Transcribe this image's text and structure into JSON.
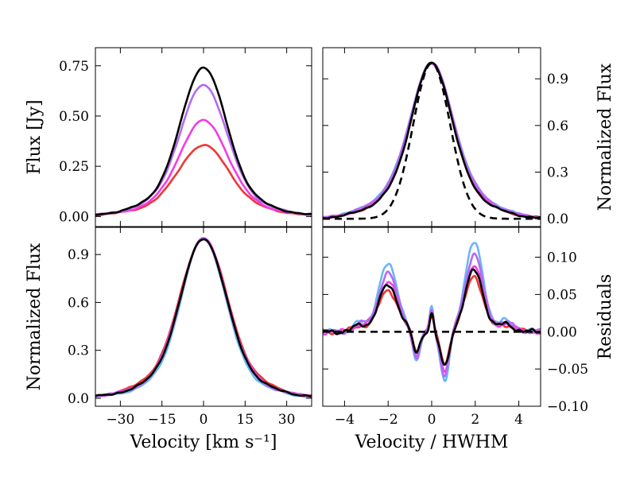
{
  "colors": {
    "black": "#000000",
    "violet": "#b36bf2",
    "magenta": "#f23ce6",
    "red": "#ee3636",
    "lightblue": "#6cb6f5"
  },
  "chart_data": [
    {
      "id": "top-left",
      "type": "line",
      "title": "",
      "xlabel": "",
      "ylabel": "Flux [Jy]",
      "ylabel_side": "left",
      "xlim": [
        -39,
        39
      ],
      "ylim": [
        -0.05,
        0.84
      ],
      "xticks": [
        -30,
        -15,
        0,
        15,
        30
      ],
      "xtick_labels": [],
      "yticks": [
        0.0,
        0.25,
        0.5,
        0.75
      ],
      "ytick_labels": [
        "0.00",
        "0.25",
        "0.50",
        "0.75"
      ],
      "series": [
        {
          "name": "red",
          "color": "red",
          "style": "gauss",
          "amp": 0.355,
          "sigma": 8.6,
          "wing": 0.22
        },
        {
          "name": "magenta",
          "color": "magenta",
          "style": "gauss",
          "amp": 0.478,
          "sigma": 8.3,
          "wing": 0.2
        },
        {
          "name": "violet",
          "color": "violet",
          "style": "gauss",
          "amp": 0.655,
          "sigma": 8.0,
          "wing": 0.2
        },
        {
          "name": "black",
          "color": "black",
          "style": "gauss",
          "amp": 0.742,
          "sigma": 7.8,
          "wing": 0.2
        }
      ]
    },
    {
      "id": "top-right",
      "type": "line",
      "title": "",
      "xlabel": "",
      "ylabel": "Normalized Flux",
      "ylabel_side": "right",
      "xlim": [
        -5,
        5
      ],
      "ylim": [
        -0.05,
        1.1
      ],
      "xticks": [
        -4,
        -2,
        0,
        2,
        4
      ],
      "xtick_labels": [],
      "yticks": [
        0.0,
        0.3,
        0.6,
        0.9
      ],
      "ytick_labels": [
        "0.0",
        "0.3",
        "0.6",
        "0.9"
      ],
      "series": [
        {
          "name": "lightblue",
          "color": "lightblue",
          "style": "norm",
          "amp": 1.0,
          "sigma": 0.9,
          "wing": 0.3
        },
        {
          "name": "red",
          "color": "red",
          "style": "norm",
          "amp": 1.0,
          "sigma": 0.88,
          "wing": 0.26
        },
        {
          "name": "magenta",
          "color": "magenta",
          "style": "norm",
          "amp": 1.0,
          "sigma": 0.88,
          "wing": 0.28
        },
        {
          "name": "violet",
          "color": "violet",
          "style": "norm",
          "amp": 1.0,
          "sigma": 0.9,
          "wing": 0.29
        },
        {
          "name": "black",
          "color": "black",
          "style": "norm",
          "amp": 1.0,
          "sigma": 0.87,
          "wing": 0.26
        },
        {
          "name": "gaussian-reference",
          "color": "black",
          "style": "dashed",
          "amp": 1.0,
          "sigma": 0.85,
          "wing": 0
        }
      ]
    },
    {
      "id": "bottom-left",
      "type": "line",
      "title": "",
      "xlabel": "Velocity [km s⁻¹]",
      "ylabel": "Normalized Flux",
      "ylabel_side": "left",
      "xlim": [
        -39,
        39
      ],
      "ylim": [
        -0.05,
        1.07
      ],
      "xticks": [
        -30,
        -15,
        0,
        15,
        30
      ],
      "xtick_labels": [
        "−30",
        "−15",
        "0",
        "15",
        "30"
      ],
      "yticks": [
        0.0,
        0.3,
        0.6,
        0.9
      ],
      "ytick_labels": [
        "0.0",
        "0.3",
        "0.6",
        "0.9"
      ],
      "series": [
        {
          "name": "lightblue",
          "color": "lightblue",
          "style": "norm",
          "amp": 1.0,
          "sigma": 7.6,
          "wing": 0.18
        },
        {
          "name": "red",
          "color": "red",
          "style": "norm",
          "amp": 1.0,
          "sigma": 8.0,
          "wing": 0.22
        },
        {
          "name": "magenta",
          "color": "magenta",
          "style": "norm",
          "amp": 1.0,
          "sigma": 7.9,
          "wing": 0.2
        },
        {
          "name": "violet",
          "color": "violet",
          "style": "norm",
          "amp": 1.0,
          "sigma": 7.8,
          "wing": 0.2
        },
        {
          "name": "black",
          "color": "black",
          "style": "norm",
          "amp": 1.0,
          "sigma": 7.8,
          "wing": 0.2
        }
      ]
    },
    {
      "id": "bottom-right",
      "type": "line",
      "title": "",
      "xlabel": "Velocity / HWHM",
      "ylabel": "Residuals",
      "ylabel_side": "right",
      "xlim": [
        -5,
        5
      ],
      "ylim": [
        -0.1,
        0.14
      ],
      "xticks": [
        -4,
        -2,
        0,
        2,
        4
      ],
      "xtick_labels": [
        "−4",
        "−2",
        "0",
        "2",
        "4"
      ],
      "yticks": [
        -0.1,
        -0.05,
        0.0,
        0.05,
        0.1
      ],
      "ytick_labels": [
        "−0.10",
        "−0.05",
        "0.00",
        "0.05",
        "0.10"
      ],
      "series": [
        {
          "name": "lightblue",
          "color": "lightblue",
          "style": "resid",
          "amp": 1.45
        },
        {
          "name": "red",
          "color": "red",
          "style": "resid",
          "amp": 0.9
        },
        {
          "name": "magenta",
          "color": "magenta",
          "style": "resid",
          "amp": 1.1
        },
        {
          "name": "violet",
          "color": "violet",
          "style": "resid",
          "amp": 1.25
        },
        {
          "name": "black",
          "color": "black",
          "style": "resid",
          "amp": 1.0
        },
        {
          "name": "zero-line",
          "color": "black",
          "style": "zero",
          "amp": 0
        }
      ]
    }
  ]
}
